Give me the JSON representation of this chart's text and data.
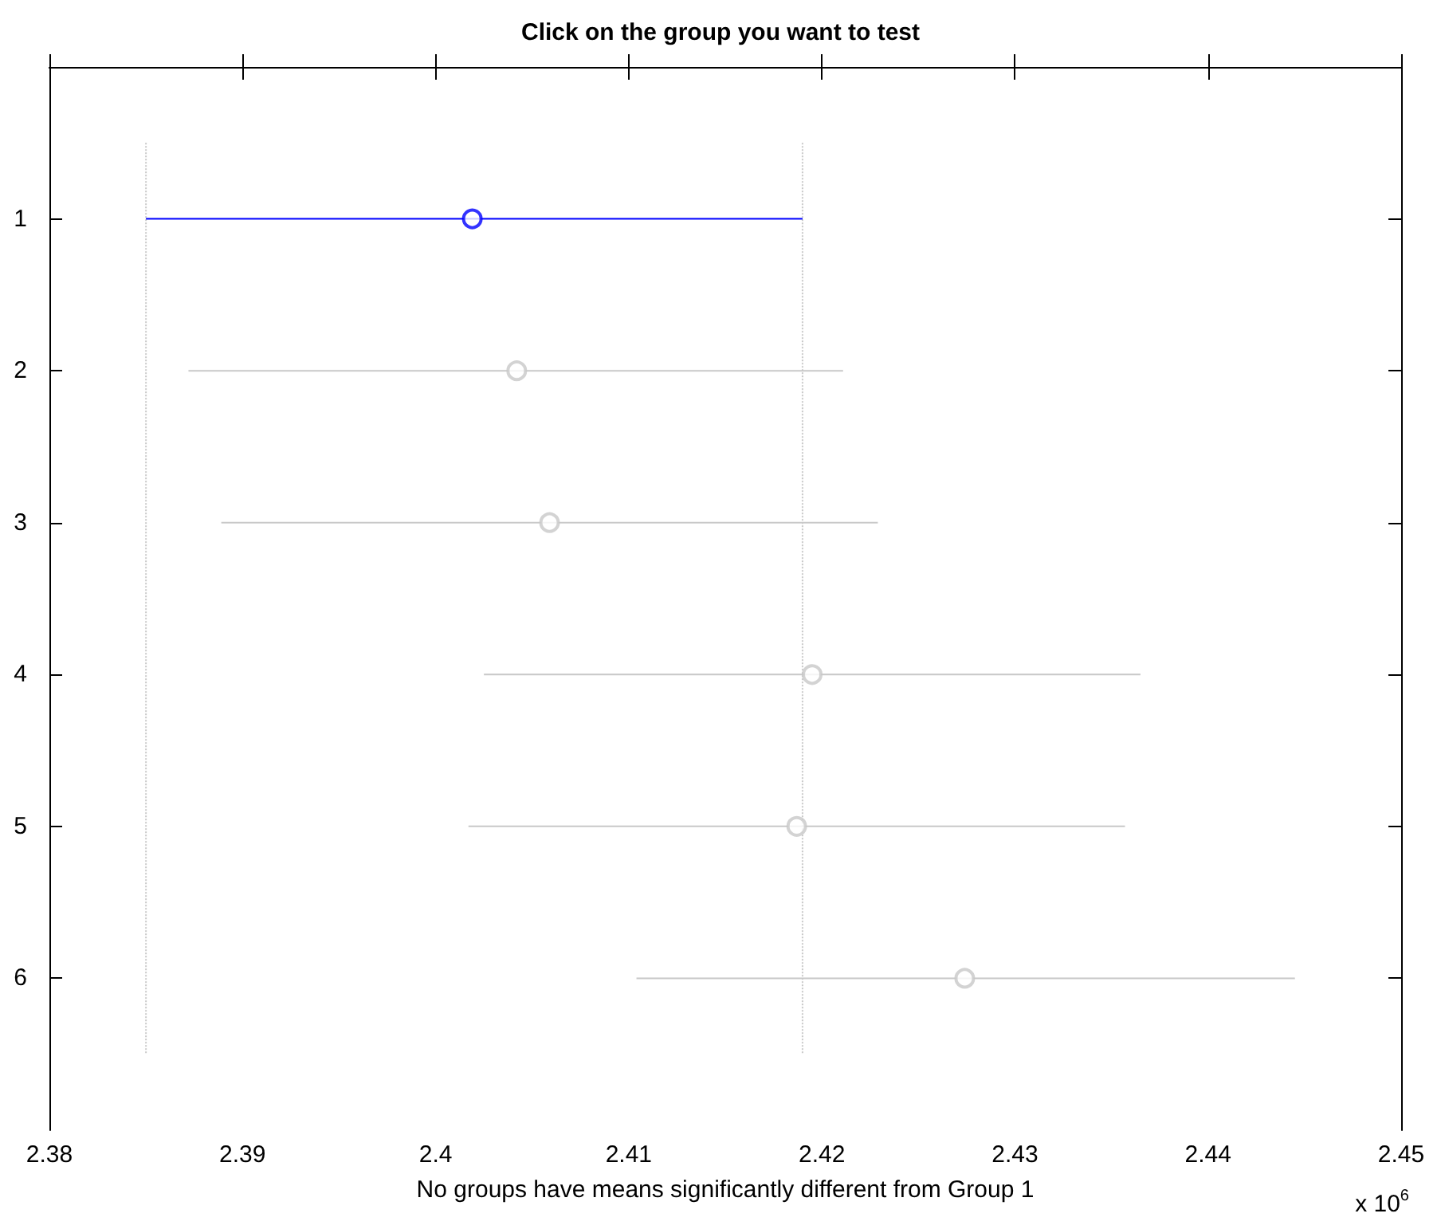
{
  "chart_data": {
    "type": "scatter",
    "orientation": "horizontal",
    "title": "Click on the group you want to test",
    "xlabel": "No groups have means significantly different from Group 1",
    "annotations": [
      "x 10$^{6}$"
    ],
    "categories": [
      "1",
      "2",
      "3",
      "4",
      "5",
      "6"
    ],
    "values": [
      2.4019,
      2.4042,
      2.4059,
      2.4195,
      2.4187,
      2.4274
    ],
    "errors": [
      [
        2.385,
        2.419
      ],
      [
        2.3872,
        2.4211
      ],
      [
        2.3889,
        2.4229
      ],
      [
        2.4025,
        2.4365
      ],
      [
        2.4017,
        2.4357
      ],
      [
        2.4104,
        2.4445
      ]
    ],
    "colors": [
      "#0000ff",
      "#c8c8c8",
      "#c8c8c8",
      "#c8c8c8",
      "#c8c8c8",
      "#c8c8c8"
    ],
    "marker": "circle",
    "xlim": [
      2.38,
      2.45
    ],
    "xticks": [
      2.38,
      2.39,
      2.4,
      2.41,
      2.42,
      2.43,
      2.44,
      2.45
    ],
    "ref_lines": [
      {
        "axis": "x",
        "value": 2.385,
        "label": null,
        "color": "#c8c8c8",
        "line_style": "dotted"
      },
      {
        "axis": "x",
        "value": 2.419,
        "label": null,
        "color": "#c8c8c8",
        "line_style": "dotted"
      }
    ],
    "grid": false
  }
}
